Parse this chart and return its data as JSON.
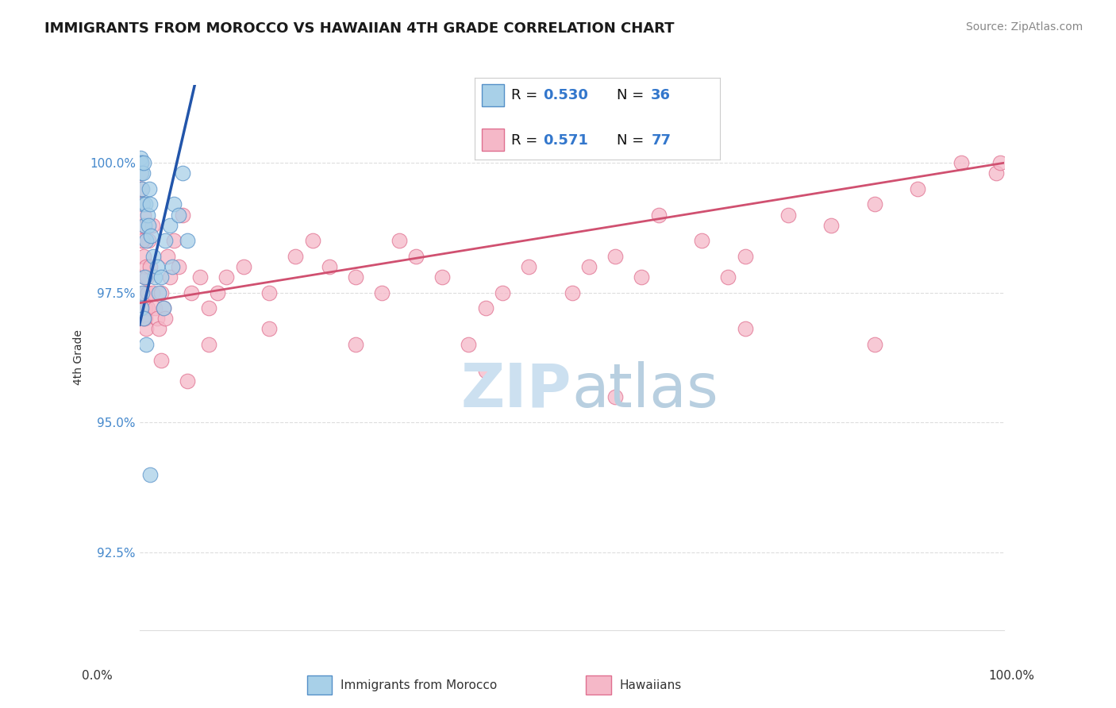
{
  "title": "IMMIGRANTS FROM MOROCCO VS HAWAIIAN 4TH GRADE CORRELATION CHART",
  "source": "Source: ZipAtlas.com",
  "ylabel": "4th Grade",
  "ytick_values": [
    92.5,
    95.0,
    97.5,
    100.0
  ],
  "xmin": 0.0,
  "xmax": 100.0,
  "ymin": 91.0,
  "ymax": 101.5,
  "blue_label": "Immigrants from Morocco",
  "pink_label": "Hawaiians",
  "blue_R": "0.530",
  "blue_N": "36",
  "pink_R": "0.571",
  "pink_N": "77",
  "blue_color": "#a8d0e8",
  "pink_color": "#f5b8c8",
  "blue_edge_color": "#5590c8",
  "pink_edge_color": "#e07090",
  "blue_line_color": "#2255aa",
  "pink_line_color": "#d05070",
  "watermark_zip_color": "#cce0f0",
  "watermark_atlas_color": "#b8cfe0",
  "title_color": "#1a1a1a",
  "source_color": "#888888",
  "ylabel_color": "#333333",
  "ytick_color": "#4488cc",
  "xtick_color": "#333333",
  "grid_color": "#dddddd",
  "legend_border_color": "#cccccc",
  "blue_line_x0": 0.3,
  "blue_line_y0": 97.1,
  "blue_line_x1": 5.0,
  "blue_line_y1": 100.5,
  "pink_line_x0": 0.0,
  "pink_line_y0": 97.3,
  "pink_line_x1": 100.0,
  "pink_line_y1": 100.0
}
